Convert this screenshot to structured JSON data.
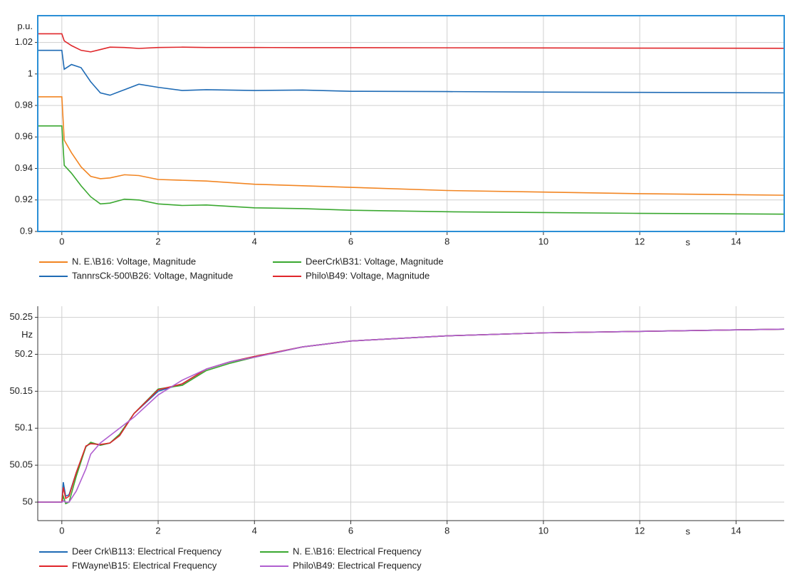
{
  "chart_data": [
    {
      "type": "line",
      "y_unit": "p.u.",
      "x_unit": "s",
      "x": [
        -0.5,
        0,
        0.05,
        0.2,
        0.4,
        0.6,
        0.8,
        1.0,
        1.3,
        1.6,
        2.0,
        2.5,
        3.0,
        4.0,
        5.0,
        6.0,
        8.0,
        10.0,
        12.0,
        15.0
      ],
      "xlim": [
        -0.5,
        15
      ],
      "xticks": [
        0,
        2,
        4,
        6,
        8,
        10,
        12,
        14
      ],
      "ylim": [
        0.9,
        1.037
      ],
      "yticks": [
        0.9,
        0.92,
        0.94,
        0.96,
        0.98,
        1,
        1.02
      ],
      "grid": true,
      "series": [
        {
          "name": "N. E.\\B16: Voltage, Magnitude",
          "color": "#f28522",
          "values": [
            0.9855,
            0.9855,
            0.958,
            0.95,
            0.941,
            0.935,
            0.9335,
            0.934,
            0.936,
            0.9355,
            0.933,
            0.9325,
            0.932,
            0.93,
            0.929,
            0.928,
            0.926,
            0.925,
            0.924,
            0.923
          ]
        },
        {
          "name": "DeerCrk\\B31: Voltage, Magnitude",
          "color": "#3aa830",
          "values": [
            0.967,
            0.967,
            0.942,
            0.937,
            0.929,
            0.922,
            0.9175,
            0.918,
            0.9205,
            0.92,
            0.9175,
            0.9165,
            0.9168,
            0.915,
            0.9145,
            0.9135,
            0.9125,
            0.912,
            0.9115,
            0.911
          ]
        },
        {
          "name": "TannrsCk-500\\B26: Voltage, Magnitude",
          "color": "#1f6bb5",
          "values": [
            1.015,
            1.015,
            1.003,
            1.006,
            1.004,
            0.995,
            0.988,
            0.9865,
            0.99,
            0.9935,
            0.9915,
            0.9895,
            0.99,
            0.9895,
            0.9898,
            0.989,
            0.9888,
            0.9885,
            0.9883,
            0.988
          ]
        },
        {
          "name": "Philo\\B49: Voltage, Magnitude",
          "color": "#e0262a",
          "values": [
            1.0255,
            1.0255,
            1.021,
            1.018,
            1.015,
            1.014,
            1.0155,
            1.017,
            1.0168,
            1.0162,
            1.0168,
            1.017,
            1.0168,
            1.0168,
            1.0167,
            1.0167,
            1.0166,
            1.0165,
            1.0164,
            1.0163
          ]
        }
      ]
    },
    {
      "type": "line",
      "y_unit": "Hz",
      "x_unit": "s",
      "x": [
        -0.5,
        0,
        0.03,
        0.08,
        0.15,
        0.3,
        0.5,
        0.6,
        0.8,
        1.0,
        1.2,
        1.5,
        2.0,
        2.5,
        3.0,
        3.5,
        4.0,
        5,
        6,
        8,
        10,
        12,
        15
      ],
      "xlim": [
        -0.5,
        15
      ],
      "xticks": [
        0,
        2,
        4,
        6,
        8,
        10,
        12,
        14
      ],
      "ylim": [
        49.975,
        50.265
      ],
      "yticks": [
        50,
        50.05,
        50.1,
        50.15,
        50.2,
        50.25
      ],
      "grid": true,
      "series": [
        {
          "name": "Deer Crk\\B113: Electrical Frequency",
          "color": "#1f6bb5",
          "values": [
            50,
            50,
            50.027,
            50.008,
            50.01,
            50.04,
            50.075,
            50.08,
            50.077,
            50.08,
            50.09,
            50.12,
            50.15,
            50.16,
            50.18,
            50.19,
            50.197,
            50.21,
            50.218,
            50.225,
            50.229,
            50.231,
            50.234
          ]
        },
        {
          "name": "N. E.\\B16: Electrical Frequency",
          "color": "#3aa830",
          "values": [
            50,
            50,
            50.008,
            49.998,
            50.0,
            50.035,
            50.075,
            50.081,
            50.077,
            50.08,
            50.092,
            50.12,
            50.153,
            50.158,
            50.178,
            50.188,
            50.196,
            50.21,
            50.218,
            50.225,
            50.229,
            50.231,
            50.234
          ]
        },
        {
          "name": "FtWayne\\B15: Electrical Frequency",
          "color": "#e0262a",
          "values": [
            50,
            50,
            50.02,
            50.005,
            50.008,
            50.04,
            50.076,
            50.079,
            50.078,
            50.08,
            50.09,
            50.12,
            50.152,
            50.16,
            50.18,
            50.19,
            50.197,
            50.21,
            50.218,
            50.225,
            50.229,
            50.231,
            50.234
          ]
        },
        {
          "name": "Philo\\B49: Electrical Frequency",
          "color": "#b05fd0",
          "values": [
            50,
            50,
            50.002,
            50.0,
            50.0,
            50.015,
            50.045,
            50.065,
            50.08,
            50.09,
            50.1,
            50.115,
            50.145,
            50.165,
            50.18,
            50.19,
            50.196,
            50.21,
            50.218,
            50.225,
            50.229,
            50.231,
            50.234
          ]
        }
      ]
    }
  ]
}
